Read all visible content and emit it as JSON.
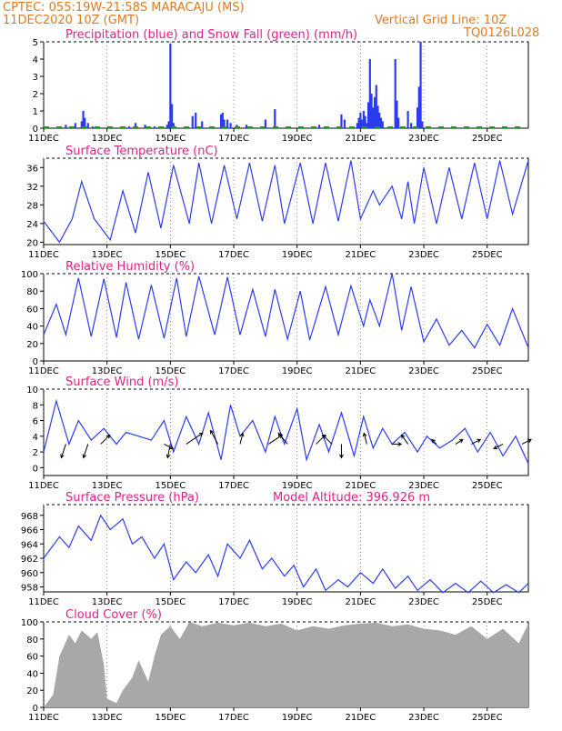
{
  "header": {
    "line1": "CPTEC:   055:19W-21:58S   MARACAJU (MS)",
    "line2": "11DEC2020 10Z (GMT)",
    "grid_note": "Vertical Grid Line: 10Z",
    "code": "TQ0126L028"
  },
  "colors": {
    "header": "#e07a1f",
    "title": "#e0208a",
    "series": "#2b3cf0",
    "snow": "#1a9a1a",
    "cloud": "#a8a8a8"
  },
  "x_labels": [
    "11DEC",
    "13DEC",
    "15DEC",
    "17DEC",
    "19DEC",
    "21DEC",
    "23DEC",
    "25DEC"
  ],
  "x_positions_days": [
    0,
    2,
    4,
    6,
    8,
    10,
    12,
    14
  ],
  "chart_data": [
    {
      "id": "precip",
      "type": "bar",
      "title": "Precipitation (blue) and Snow Fall (green) (mm/h)",
      "ylim": [
        0,
        5
      ],
      "yticks": [
        0,
        1,
        2,
        3,
        4,
        5
      ],
      "x_unit": "days since 11DEC2020 00Z",
      "bars": [
        [
          0.7,
          0.2
        ],
        [
          1.0,
          0.3
        ],
        [
          1.2,
          0.4
        ],
        [
          1.25,
          1.0
        ],
        [
          1.3,
          0.6
        ],
        [
          1.4,
          0.3
        ],
        [
          1.55,
          0.1
        ],
        [
          2.7,
          0.1
        ],
        [
          2.9,
          0.3
        ],
        [
          3.2,
          0.2
        ],
        [
          3.5,
          0.1
        ],
        [
          3.75,
          0.1
        ],
        [
          3.9,
          0.2
        ],
        [
          3.95,
          0.4
        ],
        [
          4.0,
          4.9
        ],
        [
          4.05,
          1.4
        ],
        [
          4.1,
          0.3
        ],
        [
          4.7,
          0.7
        ],
        [
          4.8,
          0.9
        ],
        [
          5.0,
          0.4
        ],
        [
          5.6,
          0.8
        ],
        [
          5.65,
          0.9
        ],
        [
          5.7,
          0.5
        ],
        [
          5.8,
          0.5
        ],
        [
          5.9,
          0.3
        ],
        [
          6.1,
          0.2
        ],
        [
          6.4,
          0.2
        ],
        [
          7.0,
          0.5
        ],
        [
          7.3,
          1.1
        ],
        [
          8.7,
          0.2
        ],
        [
          9.4,
          0.8
        ],
        [
          9.5,
          0.5
        ],
        [
          9.9,
          0.3
        ],
        [
          9.95,
          0.6
        ],
        [
          10.0,
          0.9
        ],
        [
          10.05,
          0.5
        ],
        [
          10.1,
          1.0
        ],
        [
          10.15,
          0.7
        ],
        [
          10.2,
          0.3
        ],
        [
          10.25,
          1.5
        ],
        [
          10.3,
          4.0
        ],
        [
          10.35,
          2.0
        ],
        [
          10.4,
          1.2
        ],
        [
          10.45,
          1.8
        ],
        [
          10.5,
          2.5
        ],
        [
          10.55,
          1.3
        ],
        [
          10.6,
          0.9
        ],
        [
          10.65,
          0.6
        ],
        [
          10.7,
          0.4
        ],
        [
          11.1,
          4.0
        ],
        [
          11.15,
          1.6
        ],
        [
          11.2,
          0.6
        ],
        [
          11.5,
          1.0
        ],
        [
          11.6,
          0.3
        ],
        [
          11.8,
          1.2
        ],
        [
          11.85,
          2.4
        ],
        [
          11.9,
          5.0
        ],
        [
          11.95,
          0.4
        ]
      ],
      "snow": []
    },
    {
      "id": "temp",
      "type": "line",
      "title": "Surface Temperature (nC)",
      "ylim": [
        19.5,
        38
      ],
      "yticks": [
        20,
        24,
        28,
        32,
        36
      ],
      "x": [
        0,
        0.5,
        0.9,
        1.2,
        1.6,
        2.1,
        2.5,
        2.9,
        3.3,
        3.7,
        4.1,
        4.6,
        4.9,
        5.3,
        5.7,
        6.1,
        6.5,
        6.9,
        7.3,
        7.6,
        8.1,
        8.5,
        8.9,
        9.3,
        9.7,
        10.0,
        10.4,
        10.6,
        11.0,
        11.3,
        11.5,
        11.7,
        12.0,
        12.4,
        12.8,
        13.2,
        13.6,
        14.0,
        14.4,
        14.8,
        15.3
      ],
      "y": [
        24.5,
        20,
        25,
        33,
        25,
        20.5,
        31,
        22,
        35,
        23,
        36.5,
        24,
        37,
        24,
        36.5,
        25,
        37,
        24.5,
        36.5,
        24,
        37,
        24,
        37,
        24.5,
        37.5,
        25,
        31,
        28,
        32,
        25,
        33,
        24,
        36,
        24,
        36,
        25,
        37,
        25,
        37.5,
        26,
        37.5
      ],
      "color_key": "series"
    },
    {
      "id": "rh",
      "type": "line",
      "title": "Relative Humidity (%)",
      "ylim": [
        0,
        100
      ],
      "yticks": [
        0,
        20,
        40,
        60,
        80,
        100
      ],
      "x": [
        0,
        0.4,
        0.7,
        1.1,
        1.5,
        1.9,
        2.3,
        2.6,
        3.0,
        3.4,
        3.8,
        4.2,
        4.5,
        4.9,
        5.4,
        5.8,
        6.2,
        6.6,
        7.0,
        7.3,
        7.7,
        8.1,
        8.4,
        8.9,
        9.3,
        9.7,
        10.1,
        10.3,
        10.6,
        11.0,
        11.3,
        11.6,
        12.0,
        12.4,
        12.8,
        13.2,
        13.6,
        14.0,
        14.4,
        14.8,
        15.3
      ],
      "y": [
        30,
        65,
        30,
        95,
        28,
        94,
        27,
        90,
        25,
        87,
        26,
        95,
        28,
        97,
        30,
        96,
        30,
        82,
        28,
        82,
        25,
        80,
        24,
        85,
        30,
        86,
        40,
        70,
        40,
        100,
        35,
        85,
        22,
        48,
        18,
        35,
        15,
        42,
        18,
        60,
        15
      ],
      "color_key": "series"
    },
    {
      "id": "wind",
      "type": "line",
      "title": "Surface Wind (m/s)",
      "ylim": [
        -1,
        10
      ],
      "yticks": [
        0,
        2,
        4,
        6,
        8,
        10
      ],
      "x": [
        0,
        0.4,
        0.8,
        1.1,
        1.5,
        1.9,
        2.3,
        2.6,
        3.0,
        3.4,
        3.8,
        4.1,
        4.5,
        4.9,
        5.2,
        5.6,
        5.9,
        6.2,
        6.6,
        7.0,
        7.3,
        7.6,
        8.0,
        8.3,
        8.7,
        9.0,
        9.4,
        9.8,
        10.1,
        10.4,
        10.7,
        11.0,
        11.4,
        11.8,
        12.1,
        12.5,
        12.9,
        13.3,
        13.7,
        14.1,
        14.5,
        14.9,
        15.3
      ],
      "y": [
        2,
        8.5,
        3,
        6,
        3.5,
        5,
        3,
        4.5,
        4,
        3.5,
        6,
        2,
        6.5,
        3,
        7,
        1,
        8,
        4,
        6,
        2,
        6.5,
        3,
        7.5,
        1,
        5.5,
        2,
        7,
        1.5,
        6.5,
        2.5,
        5,
        3,
        4.5,
        2,
        4,
        2.5,
        3.5,
        5,
        2,
        4.5,
        1.5,
        4,
        0.5
      ],
      "arrows": [
        [
          0.7,
          -0.5,
          -1.5
        ],
        [
          1.4,
          -0.5,
          -1.5
        ],
        [
          1.8,
          1.0,
          1.0
        ],
        [
          3.8,
          1.0,
          -0.5
        ],
        [
          4.0,
          -0.3,
          -1.5
        ],
        [
          4.5,
          1.8,
          1.2
        ],
        [
          5.5,
          -0.8,
          1.5
        ],
        [
          6.2,
          0.3,
          1.2
        ],
        [
          7.1,
          1.5,
          1.0
        ],
        [
          7.7,
          -1.0,
          1.2
        ],
        [
          8.6,
          1.0,
          1.0
        ],
        [
          9.1,
          -1.0,
          1.0
        ],
        [
          9.4,
          0,
          -1.5
        ],
        [
          10.2,
          -0.3,
          1.2
        ],
        [
          11.0,
          1.0,
          0
        ],
        [
          11.5,
          -0.7,
          1.0
        ],
        [
          12.4,
          -0.5,
          0.5
        ],
        [
          13.0,
          0.8,
          0.5
        ],
        [
          13.5,
          1.0,
          0.5
        ],
        [
          14.5,
          -1.0,
          -0.5
        ],
        [
          15.1,
          1.0,
          0.5
        ]
      ],
      "color_key": "series"
    },
    {
      "id": "pres",
      "type": "line",
      "title": "Surface Pressure (hPa)",
      "annotation": "Model Altitude: 396.926 m",
      "ylim": [
        957.3,
        969.5
      ],
      "yticks": [
        958,
        960,
        962,
        964,
        966,
        968
      ],
      "x": [
        0,
        0.5,
        0.8,
        1.1,
        1.5,
        1.8,
        2.1,
        2.5,
        2.8,
        3.1,
        3.5,
        3.8,
        4.1,
        4.5,
        4.8,
        5.2,
        5.5,
        5.8,
        6.2,
        6.5,
        6.9,
        7.2,
        7.6,
        7.9,
        8.2,
        8.6,
        8.9,
        9.3,
        9.6,
        10.0,
        10.4,
        10.7,
        11.1,
        11.5,
        11.8,
        12.2,
        12.6,
        13.0,
        13.4,
        13.8,
        14.2,
        14.6,
        15.0,
        15.3
      ],
      "y": [
        962,
        965,
        963.5,
        966.5,
        964.5,
        968,
        966,
        967.5,
        964,
        965,
        962,
        964,
        959,
        961.5,
        960,
        962.5,
        959.5,
        964,
        962,
        964.5,
        960.5,
        962,
        959.5,
        961,
        958,
        960.5,
        957.5,
        959,
        958,
        960,
        958.5,
        960.5,
        957.8,
        959.5,
        957.5,
        959,
        957.2,
        958.5,
        957.2,
        958.8,
        957.2,
        958.3,
        957.2,
        958.5
      ],
      "color_key": "series"
    },
    {
      "id": "cloud",
      "type": "area",
      "title": "Cloud Cover (%)",
      "ylim": [
        0,
        100
      ],
      "yticks": [
        0,
        20,
        40,
        60,
        80,
        100
      ],
      "x": [
        0,
        0.3,
        0.5,
        0.8,
        1.0,
        1.2,
        1.5,
        1.7,
        1.9,
        2.0,
        2.3,
        2.5,
        2.8,
        3.0,
        3.3,
        3.5,
        3.7,
        4.0,
        4.3,
        4.6,
        5.0,
        5.5,
        6.0,
        6.5,
        7.0,
        7.5,
        8.0,
        8.5,
        9.0,
        9.5,
        10.0,
        10.5,
        11.0,
        11.5,
        12.0,
        12.5,
        13.0,
        13.5,
        14.0,
        14.5,
        15.0,
        15.3
      ],
      "y": [
        0,
        15,
        60,
        85,
        75,
        90,
        80,
        88,
        50,
        10,
        5,
        20,
        35,
        55,
        30,
        60,
        85,
        95,
        80,
        100,
        95,
        99,
        96,
        99,
        95,
        98,
        90,
        95,
        92,
        96,
        98,
        99,
        95,
        97,
        92,
        90,
        85,
        95,
        80,
        92,
        75,
        98
      ],
      "color_key": "cloud"
    }
  ]
}
